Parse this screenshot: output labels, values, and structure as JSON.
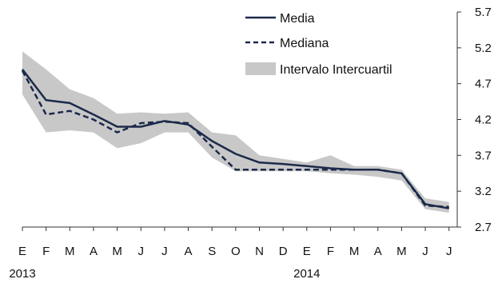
{
  "chart_data": {
    "type": "line",
    "categories": [
      "E",
      "F",
      "M",
      "A",
      "M",
      "J",
      "J",
      "A",
      "S",
      "O",
      "N",
      "D",
      "E",
      "F",
      "M",
      "A",
      "M",
      "J",
      "J"
    ],
    "year_labels": [
      {
        "label": "2013",
        "index": 0
      },
      {
        "label": "2014",
        "index": 12
      }
    ],
    "series": [
      {
        "name": "Media",
        "style": "solid",
        "color": "#1b2a4a",
        "values": [
          4.9,
          4.47,
          4.43,
          4.27,
          4.1,
          4.1,
          4.18,
          4.13,
          3.9,
          3.72,
          3.6,
          3.58,
          3.55,
          3.52,
          3.5,
          3.5,
          3.45,
          3.02,
          2.96
        ]
      },
      {
        "name": "Mediana",
        "style": "dashed",
        "color": "#1b2a4a",
        "values": [
          4.88,
          4.27,
          4.32,
          4.2,
          4.02,
          4.15,
          4.17,
          4.15,
          3.82,
          3.5,
          3.5,
          3.5,
          3.5,
          3.5,
          3.5,
          3.5,
          3.45,
          3.0,
          2.98
        ]
      }
    ],
    "band": {
      "name": "Intervalo Intercuartil",
      "color": "#c8c8c8",
      "upper": [
        5.15,
        4.9,
        4.62,
        4.5,
        4.28,
        4.3,
        4.28,
        4.3,
        4.02,
        3.98,
        3.7,
        3.65,
        3.6,
        3.7,
        3.55,
        3.55,
        3.5,
        3.1,
        3.05
      ],
      "lower": [
        4.55,
        4.02,
        4.05,
        4.02,
        3.8,
        3.87,
        4.02,
        4.02,
        3.67,
        3.48,
        3.48,
        3.48,
        3.48,
        3.45,
        3.43,
        3.4,
        3.35,
        2.95,
        2.9
      ]
    },
    "y_axis": {
      "position": "right",
      "ylim": [
        2.7,
        5.7
      ],
      "ticks": [
        "5.7",
        "5.2",
        "4.7",
        "4.2",
        "3.7",
        "3.2",
        "2.7"
      ]
    },
    "legend_position": "top-right",
    "grid": false
  }
}
